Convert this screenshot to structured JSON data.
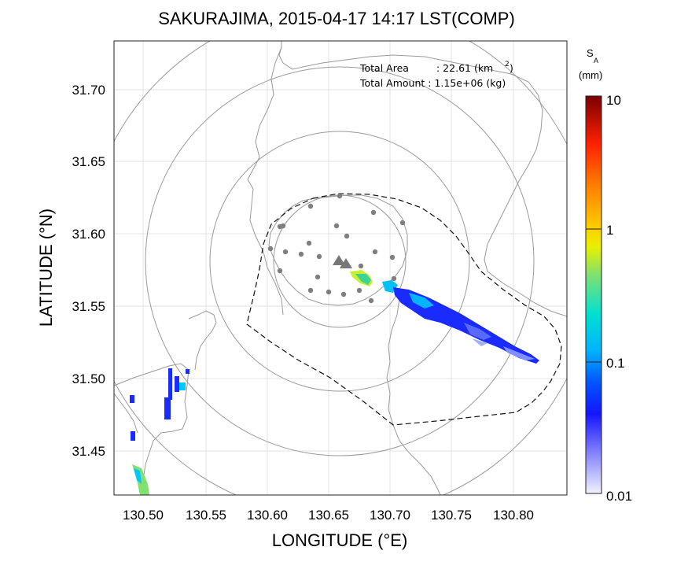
{
  "title": "SAKURAJIMA, 2015-04-17 14:17 LST(COMP)",
  "x_axis": {
    "label": "LONGITUDE (°E)",
    "ticks": [
      "130.50",
      "130.55",
      "130.60",
      "130.65",
      "130.70",
      "130.75",
      "130.80"
    ]
  },
  "y_axis": {
    "label": "LATITUDE (°N)",
    "ticks": [
      "31.70",
      "31.65",
      "31.60",
      "31.55",
      "31.50",
      "31.45"
    ]
  },
  "annotation": {
    "area_label": "Total Area",
    "area_value": ": 22.61 (km",
    "area_sup": "2",
    "area_close": ")",
    "amount_label": "Total Amount : 1.15e+06 (kg)"
  },
  "colorbar": {
    "label_main": "S",
    "label_sub": "A",
    "unit": "(mm)",
    "ticks": [
      "10",
      "1",
      "0.1",
      "0.01"
    ],
    "scale": "log",
    "range": [
      0.01,
      10
    ]
  },
  "colors": {
    "plume_dark": "#1a2bff",
    "plume_light": "#00c8ff",
    "vent": "#777777",
    "station": "#7f7f7f"
  },
  "chart_data": {
    "type": "map",
    "xlim": [
      130.47,
      130.845
    ],
    "ylim": [
      31.418,
      31.735
    ],
    "grid": true,
    "vent": {
      "lon": 130.658,
      "lat": 31.58
    },
    "deposit_axis": [
      {
        "lon": 130.672,
        "lat": 31.571,
        "value": 0.3
      },
      {
        "lon": 130.695,
        "lat": 31.565,
        "value": 0.1
      },
      {
        "lon": 130.73,
        "lat": 31.55,
        "value": 0.04
      },
      {
        "lon": 130.76,
        "lat": 31.538,
        "value": 0.03
      },
      {
        "lon": 130.785,
        "lat": 31.525,
        "value": 0.02
      },
      {
        "lon": 130.815,
        "lat": 31.512,
        "value": 0.015
      }
    ]
  }
}
